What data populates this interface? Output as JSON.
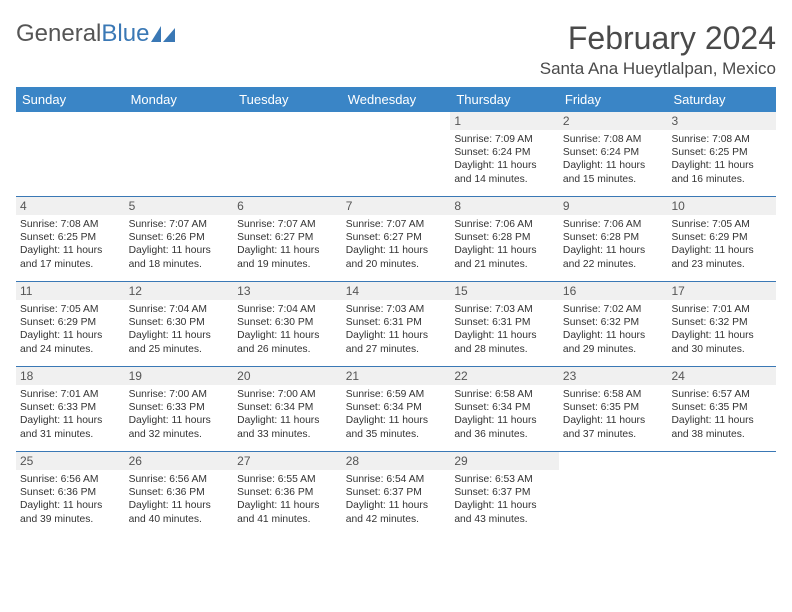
{
  "logo": {
    "text1": "General",
    "text2": "Blue"
  },
  "title": {
    "month_year": "February 2024",
    "location": "Santa Ana Hueytlalpan, Mexico"
  },
  "weekdays": [
    "Sunday",
    "Monday",
    "Tuesday",
    "Wednesday",
    "Thursday",
    "Friday",
    "Saturday"
  ],
  "colors": {
    "header_bg": "#3a85c6",
    "rule": "#3a78b5",
    "daynum_bg": "#f0f0f0",
    "text": "#333333"
  },
  "weeks": [
    [
      {
        "n": "",
        "sr": "",
        "ss": "",
        "dl": ""
      },
      {
        "n": "",
        "sr": "",
        "ss": "",
        "dl": ""
      },
      {
        "n": "",
        "sr": "",
        "ss": "",
        "dl": ""
      },
      {
        "n": "",
        "sr": "",
        "ss": "",
        "dl": ""
      },
      {
        "n": "1",
        "sr": "Sunrise: 7:09 AM",
        "ss": "Sunset: 6:24 PM",
        "dl": "Daylight: 11 hours and 14 minutes."
      },
      {
        "n": "2",
        "sr": "Sunrise: 7:08 AM",
        "ss": "Sunset: 6:24 PM",
        "dl": "Daylight: 11 hours and 15 minutes."
      },
      {
        "n": "3",
        "sr": "Sunrise: 7:08 AM",
        "ss": "Sunset: 6:25 PM",
        "dl": "Daylight: 11 hours and 16 minutes."
      }
    ],
    [
      {
        "n": "4",
        "sr": "Sunrise: 7:08 AM",
        "ss": "Sunset: 6:25 PM",
        "dl": "Daylight: 11 hours and 17 minutes."
      },
      {
        "n": "5",
        "sr": "Sunrise: 7:07 AM",
        "ss": "Sunset: 6:26 PM",
        "dl": "Daylight: 11 hours and 18 minutes."
      },
      {
        "n": "6",
        "sr": "Sunrise: 7:07 AM",
        "ss": "Sunset: 6:27 PM",
        "dl": "Daylight: 11 hours and 19 minutes."
      },
      {
        "n": "7",
        "sr": "Sunrise: 7:07 AM",
        "ss": "Sunset: 6:27 PM",
        "dl": "Daylight: 11 hours and 20 minutes."
      },
      {
        "n": "8",
        "sr": "Sunrise: 7:06 AM",
        "ss": "Sunset: 6:28 PM",
        "dl": "Daylight: 11 hours and 21 minutes."
      },
      {
        "n": "9",
        "sr": "Sunrise: 7:06 AM",
        "ss": "Sunset: 6:28 PM",
        "dl": "Daylight: 11 hours and 22 minutes."
      },
      {
        "n": "10",
        "sr": "Sunrise: 7:05 AM",
        "ss": "Sunset: 6:29 PM",
        "dl": "Daylight: 11 hours and 23 minutes."
      }
    ],
    [
      {
        "n": "11",
        "sr": "Sunrise: 7:05 AM",
        "ss": "Sunset: 6:29 PM",
        "dl": "Daylight: 11 hours and 24 minutes."
      },
      {
        "n": "12",
        "sr": "Sunrise: 7:04 AM",
        "ss": "Sunset: 6:30 PM",
        "dl": "Daylight: 11 hours and 25 minutes."
      },
      {
        "n": "13",
        "sr": "Sunrise: 7:04 AM",
        "ss": "Sunset: 6:30 PM",
        "dl": "Daylight: 11 hours and 26 minutes."
      },
      {
        "n": "14",
        "sr": "Sunrise: 7:03 AM",
        "ss": "Sunset: 6:31 PM",
        "dl": "Daylight: 11 hours and 27 minutes."
      },
      {
        "n": "15",
        "sr": "Sunrise: 7:03 AM",
        "ss": "Sunset: 6:31 PM",
        "dl": "Daylight: 11 hours and 28 minutes."
      },
      {
        "n": "16",
        "sr": "Sunrise: 7:02 AM",
        "ss": "Sunset: 6:32 PM",
        "dl": "Daylight: 11 hours and 29 minutes."
      },
      {
        "n": "17",
        "sr": "Sunrise: 7:01 AM",
        "ss": "Sunset: 6:32 PM",
        "dl": "Daylight: 11 hours and 30 minutes."
      }
    ],
    [
      {
        "n": "18",
        "sr": "Sunrise: 7:01 AM",
        "ss": "Sunset: 6:33 PM",
        "dl": "Daylight: 11 hours and 31 minutes."
      },
      {
        "n": "19",
        "sr": "Sunrise: 7:00 AM",
        "ss": "Sunset: 6:33 PM",
        "dl": "Daylight: 11 hours and 32 minutes."
      },
      {
        "n": "20",
        "sr": "Sunrise: 7:00 AM",
        "ss": "Sunset: 6:34 PM",
        "dl": "Daylight: 11 hours and 33 minutes."
      },
      {
        "n": "21",
        "sr": "Sunrise: 6:59 AM",
        "ss": "Sunset: 6:34 PM",
        "dl": "Daylight: 11 hours and 35 minutes."
      },
      {
        "n": "22",
        "sr": "Sunrise: 6:58 AM",
        "ss": "Sunset: 6:34 PM",
        "dl": "Daylight: 11 hours and 36 minutes."
      },
      {
        "n": "23",
        "sr": "Sunrise: 6:58 AM",
        "ss": "Sunset: 6:35 PM",
        "dl": "Daylight: 11 hours and 37 minutes."
      },
      {
        "n": "24",
        "sr": "Sunrise: 6:57 AM",
        "ss": "Sunset: 6:35 PM",
        "dl": "Daylight: 11 hours and 38 minutes."
      }
    ],
    [
      {
        "n": "25",
        "sr": "Sunrise: 6:56 AM",
        "ss": "Sunset: 6:36 PM",
        "dl": "Daylight: 11 hours and 39 minutes."
      },
      {
        "n": "26",
        "sr": "Sunrise: 6:56 AM",
        "ss": "Sunset: 6:36 PM",
        "dl": "Daylight: 11 hours and 40 minutes."
      },
      {
        "n": "27",
        "sr": "Sunrise: 6:55 AM",
        "ss": "Sunset: 6:36 PM",
        "dl": "Daylight: 11 hours and 41 minutes."
      },
      {
        "n": "28",
        "sr": "Sunrise: 6:54 AM",
        "ss": "Sunset: 6:37 PM",
        "dl": "Daylight: 11 hours and 42 minutes."
      },
      {
        "n": "29",
        "sr": "Sunrise: 6:53 AM",
        "ss": "Sunset: 6:37 PM",
        "dl": "Daylight: 11 hours and 43 minutes."
      },
      {
        "n": "",
        "sr": "",
        "ss": "",
        "dl": ""
      },
      {
        "n": "",
        "sr": "",
        "ss": "",
        "dl": ""
      }
    ]
  ]
}
